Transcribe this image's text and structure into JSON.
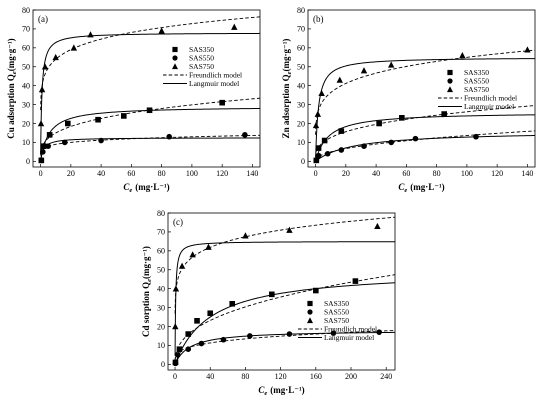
{
  "chart_data": [
    {
      "type": "scatter",
      "panel_label": "(a)",
      "ylabel": "Cu adsorption Q",
      "ylabel_sub": "e",
      "ylabel_unit": "(mg·g⁻¹)",
      "xlabel": "C",
      "xlabel_sub": "e",
      "xlabel_unit": "(mg·L⁻¹)",
      "xlim": [
        -5,
        145
      ],
      "ylim": [
        -3,
        80
      ],
      "xticks": [
        0,
        20,
        40,
        60,
        80,
        100,
        120,
        140
      ],
      "yticks": [
        0,
        10,
        20,
        30,
        40,
        50,
        60,
        70,
        80
      ],
      "legend_position": "right",
      "series": [
        {
          "name": "SAS350",
          "marker": "square",
          "x": [
            0.5,
            2,
            6,
            18,
            38,
            55,
            72,
            120
          ],
          "y": [
            0.5,
            8,
            14,
            20,
            22,
            24,
            27,
            31
          ]
        },
        {
          "name": "SAS550",
          "marker": "circle",
          "x": [
            0.5,
            1.5,
            5,
            16,
            40,
            85,
            135
          ],
          "y": [
            0.5,
            5,
            8,
            10,
            11,
            13,
            14
          ]
        },
        {
          "name": "SAS750",
          "marker": "triangle",
          "x": [
            0.3,
            1,
            3,
            10,
            22,
            33,
            80,
            128
          ],
          "y": [
            20,
            38,
            50,
            55,
            60,
            67,
            69,
            71
          ]
        }
      ],
      "model_legend": [
        {
          "name": "Freundlich model",
          "style": "dashed"
        },
        {
          "name": "Langmuir model",
          "style": "solid"
        }
      ],
      "models": [
        {
          "series": "SAS350",
          "freundlich": {
            "kf": 7.5,
            "n": 0.3
          },
          "langmuir": {
            "qm": 29,
            "kl": 0.18
          }
        },
        {
          "series": "SAS550",
          "freundlich": {
            "kf": 6.2,
            "n": 0.16
          },
          "langmuir": {
            "qm": 12.5,
            "kl": 0.5
          }
        },
        {
          "series": "SAS750",
          "freundlich": {
            "kf": 40,
            "n": 0.13
          },
          "langmuir": {
            "qm": 68,
            "kl": 1.2
          }
        }
      ]
    },
    {
      "type": "scatter",
      "panel_label": "(b)",
      "ylabel": "Zn adsorption Q",
      "ylabel_sub": "e",
      "ylabel_unit": "(mg·g⁻¹)",
      "xlabel": "C",
      "xlabel_sub": "e",
      "xlabel_unit": "(mg·L⁻¹)",
      "xlim": [
        -5,
        145
      ],
      "ylim": [
        -3,
        80
      ],
      "xticks": [
        0,
        20,
        40,
        60,
        80,
        100,
        120,
        140
      ],
      "yticks": [
        0,
        10,
        20,
        30,
        40,
        50,
        60,
        70,
        80
      ],
      "legend_position": "right",
      "series": [
        {
          "name": "SAS350",
          "marker": "square",
          "x": [
            0.5,
            2,
            6,
            17,
            42,
            57,
            85
          ],
          "y": [
            0.5,
            7,
            11,
            16,
            20,
            23,
            25
          ]
        },
        {
          "name": "SAS550",
          "marker": "circle",
          "x": [
            0.5,
            2,
            8,
            17,
            32,
            50,
            66,
            106
          ],
          "y": [
            0.5,
            3,
            4,
            6,
            8,
            10,
            12,
            13
          ]
        },
        {
          "name": "SAS750",
          "marker": "triangle",
          "x": [
            0.3,
            1.5,
            4,
            16,
            32,
            50,
            97,
            140
          ],
          "y": [
            19,
            25,
            36,
            43,
            48,
            51,
            56,
            59
          ]
        }
      ],
      "model_legend": [
        {
          "name": "Freundlich model",
          "style": "dashed"
        },
        {
          "name": "Langmuir model",
          "style": "solid"
        }
      ],
      "models": [
        {
          "series": "SAS350",
          "freundlich": {
            "kf": 6,
            "n": 0.32
          },
          "langmuir": {
            "qm": 26,
            "kl": 0.12
          }
        },
        {
          "series": "SAS550",
          "freundlich": {
            "kf": 1.8,
            "n": 0.44
          },
          "langmuir": {
            "qm": 16,
            "kl": 0.04
          }
        },
        {
          "series": "SAS750",
          "freundlich": {
            "kf": 24,
            "n": 0.18
          },
          "langmuir": {
            "qm": 55,
            "kl": 0.55
          }
        }
      ]
    },
    {
      "type": "scatter",
      "panel_label": "(c)",
      "ylabel": "Cd sorption Q",
      "ylabel_sub": "e",
      "ylabel_unit": "(mg·g⁻¹)",
      "xlabel": "C",
      "xlabel_sub": "e",
      "xlabel_unit": "(mg·L⁻¹)",
      "xlim": [
        -8,
        250
      ],
      "ylim": [
        -3,
        80
      ],
      "xticks": [
        0,
        40,
        80,
        120,
        160,
        200,
        240
      ],
      "yticks": [
        0,
        10,
        20,
        30,
        40,
        50,
        60,
        70,
        80
      ],
      "legend_position": "right",
      "series": [
        {
          "name": "SAS350",
          "marker": "square",
          "x": [
            0.5,
            5,
            15,
            25,
            40,
            65,
            110,
            160,
            205
          ],
          "y": [
            1,
            8,
            16,
            23,
            27,
            32,
            37,
            39,
            44
          ]
        },
        {
          "name": "SAS550",
          "marker": "circle",
          "x": [
            0.5,
            3,
            15,
            30,
            55,
            85,
            130,
            180,
            232
          ],
          "y": [
            0.5,
            5,
            8,
            11,
            13,
            15,
            16,
            16.5,
            17
          ]
        },
        {
          "name": "SAS750",
          "marker": "triangle",
          "x": [
            0.3,
            1,
            8,
            20,
            38,
            80,
            130,
            230
          ],
          "y": [
            20,
            40,
            52,
            58,
            62,
            68,
            71,
            73
          ]
        }
      ],
      "model_legend": [
        {
          "name": "Freundlich model",
          "style": "dashed"
        },
        {
          "name": "Langmuir model",
          "style": "solid"
        }
      ],
      "models": [
        {
          "series": "SAS350",
          "freundlich": {
            "kf": 5.5,
            "n": 0.39
          },
          "langmuir": {
            "qm": 50,
            "kl": 0.025
          }
        },
        {
          "series": "SAS550",
          "freundlich": {
            "kf": 4.5,
            "n": 0.25
          },
          "langmuir": {
            "qm": 18,
            "kl": 0.06
          }
        },
        {
          "series": "SAS750",
          "freundlich": {
            "kf": 39,
            "n": 0.125
          },
          "langmuir": {
            "qm": 65,
            "kl": 1.5
          }
        }
      ]
    }
  ]
}
